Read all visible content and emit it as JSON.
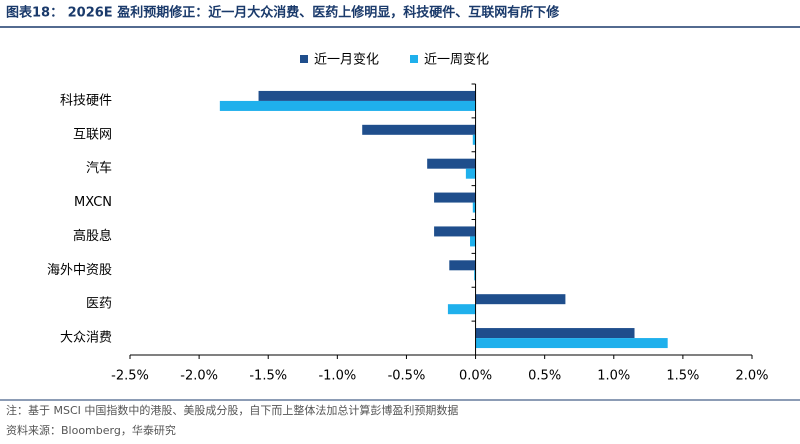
{
  "chart_data": {
    "type": "barh",
    "title": "图表18： 2026E 盈利预期修正：近一月大众消费、医药上修明显，科技硬件、互联网有所下修",
    "categories": [
      "科技硬件",
      "互联网",
      "汽车",
      "MXCN",
      "高股息",
      "海外中资股",
      "医药",
      "大众消费"
    ],
    "series": [
      {
        "name": "近一月变化",
        "color": "#1f4e8c",
        "values": [
          -1.57,
          -0.82,
          -0.35,
          -0.3,
          -0.3,
          -0.19,
          0.65,
          1.15
        ]
      },
      {
        "name": "近一周变化",
        "color": "#1fb0ec",
        "values": [
          -1.85,
          -0.02,
          -0.07,
          -0.02,
          -0.04,
          -0.01,
          -0.2,
          1.39
        ]
      }
    ],
    "xlim": [
      -2.5,
      2.0
    ],
    "xticks": [
      {
        "value": -2.5,
        "label": "-2.5%"
      },
      {
        "value": -2.0,
        "label": "-2.0%"
      },
      {
        "value": -1.5,
        "label": "-1.5%"
      },
      {
        "value": -1.0,
        "label": "-1.0%"
      },
      {
        "value": -0.5,
        "label": "-0.5%"
      },
      {
        "value": 0,
        "label": "0.0%"
      },
      {
        "value": 0.5,
        "label": "0.5%"
      },
      {
        "value": 1.0,
        "label": "1.0%"
      },
      {
        "value": 1.5,
        "label": "1.5%"
      },
      {
        "value": 2.0,
        "label": "2.0%"
      }
    ],
    "legend": "top",
    "notes": [
      "注：基于 MSCI 中国指数中的港股、美股成分股，自下而上整体法加总计算彭博盈利预期数据",
      "资料来源：Bloomberg，华泰研究"
    ]
  }
}
